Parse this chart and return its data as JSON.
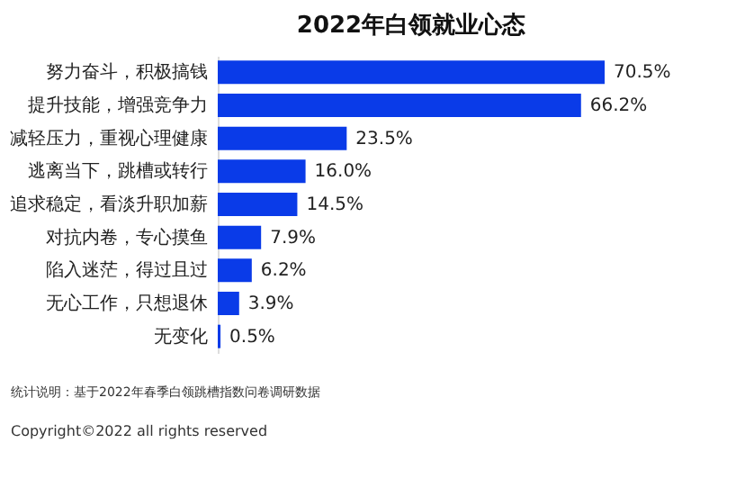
{
  "chart_data": {
    "type": "bar",
    "orientation": "horizontal",
    "title": "2022年白领就业心态",
    "categories": [
      "努力奋斗，积极搞钱",
      "提升技能，增强竞争力",
      "减轻压力，重视心理健康",
      "逃离当下，跳槽或转行",
      "追求稳定，看淡升职加薪",
      "对抗内卷，专心摸鱼",
      "陷入迷茫，得过且过",
      "无心工作，只想退休",
      "无变化"
    ],
    "values": [
      70.5,
      66.2,
      23.5,
      16.0,
      14.5,
      7.9,
      6.2,
      3.9,
      0.5
    ],
    "value_labels": [
      "70.5%",
      "66.2%",
      "23.5%",
      "16.0%",
      "14.5%",
      "7.9%",
      "6.2%",
      "3.9%",
      "0.5%"
    ],
    "color": "#0a3be8",
    "tick_labels": "y",
    "grid": false,
    "annotations": [
      "统计说明：基于2022年春季白领跳槽指数问卷调研数据",
      "Copyright©2022 all rights reserved"
    ]
  }
}
